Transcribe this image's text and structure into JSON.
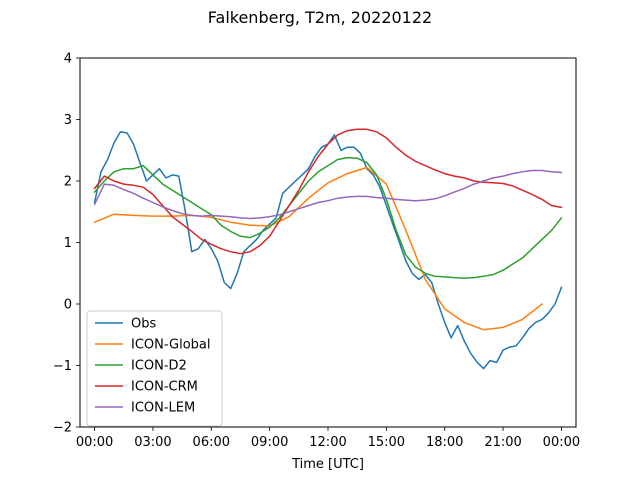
{
  "chart_data": {
    "type": "line",
    "title": "Falkenberg, T2m, 20220122",
    "xlabel": "Time [UTC]",
    "ylabel": "",
    "xlim": [
      -0.75,
      24.75
    ],
    "ylim": [
      -2,
      4
    ],
    "x_ticks": [
      0,
      3,
      6,
      9,
      12,
      15,
      18,
      21,
      24
    ],
    "x_tick_labels": [
      "00:00",
      "03:00",
      "06:00",
      "09:00",
      "12:00",
      "15:00",
      "18:00",
      "21:00",
      "00:00"
    ],
    "y_ticks": [
      -2,
      -1,
      0,
      1,
      2,
      3,
      4
    ],
    "y_tick_labels": [
      "−2",
      "−1",
      "0",
      "1",
      "2",
      "3",
      "4"
    ],
    "legend_position": "lower-left",
    "series": [
      {
        "name": "Obs",
        "color": "#1f77b4",
        "x": [
          0,
          0.33,
          0.67,
          1,
          1.33,
          1.67,
          2,
          2.33,
          2.67,
          3,
          3.33,
          3.67,
          4,
          4.33,
          4.67,
          5,
          5.33,
          5.67,
          6,
          6.33,
          6.67,
          7,
          7.33,
          7.67,
          8,
          8.33,
          8.67,
          9,
          9.33,
          9.67,
          10,
          10.33,
          10.67,
          11,
          11.33,
          11.67,
          12,
          12.33,
          12.67,
          13,
          13.33,
          13.67,
          14,
          14.33,
          14.67,
          15,
          15.33,
          15.67,
          16,
          16.33,
          16.67,
          17,
          17.33,
          17.67,
          18,
          18.33,
          18.67,
          19,
          19.33,
          19.67,
          20,
          20.33,
          20.67,
          21,
          21.33,
          21.67,
          22,
          22.33,
          22.67,
          23,
          23.33,
          23.67,
          24
        ],
        "y": [
          1.65,
          2.15,
          2.35,
          2.62,
          2.8,
          2.78,
          2.6,
          2.3,
          2.0,
          2.1,
          2.2,
          2.05,
          2.1,
          2.08,
          1.5,
          0.85,
          0.9,
          1.05,
          0.9,
          0.7,
          0.35,
          0.25,
          0.5,
          0.85,
          0.95,
          1.05,
          1.2,
          1.3,
          1.4,
          1.8,
          1.9,
          2.0,
          2.1,
          2.2,
          2.4,
          2.55,
          2.6,
          2.75,
          2.5,
          2.55,
          2.55,
          2.45,
          2.2,
          2.1,
          1.9,
          1.6,
          1.3,
          1.0,
          0.7,
          0.5,
          0.4,
          0.48,
          0.35,
          0.0,
          -0.3,
          -0.55,
          -0.35,
          -0.6,
          -0.8,
          -0.95,
          -1.05,
          -0.92,
          -0.95,
          -0.75,
          -0.7,
          -0.68,
          -0.55,
          -0.4,
          -0.3,
          -0.25,
          -0.15,
          0.0,
          0.27
        ]
      },
      {
        "name": "ICON-Global",
        "color": "#ff7f0e",
        "x": [
          0,
          1,
          2,
          3,
          4,
          5,
          6,
          7,
          8,
          9,
          10,
          11,
          12,
          13,
          14,
          15,
          16,
          17,
          18,
          19,
          20,
          21,
          22,
          23
        ],
        "y": [
          1.33,
          1.46,
          1.44,
          1.43,
          1.43,
          1.44,
          1.41,
          1.33,
          1.28,
          1.27,
          1.42,
          1.72,
          1.97,
          2.12,
          2.22,
          1.95,
          1.2,
          0.4,
          -0.08,
          -0.3,
          -0.42,
          -0.38,
          -0.25,
          0.0
        ]
      },
      {
        "name": "ICON-D2",
        "color": "#2ca02c",
        "x": [
          0,
          0.5,
          1,
          1.5,
          2,
          2.5,
          3,
          3.5,
          4,
          4.5,
          5,
          5.5,
          6,
          6.5,
          7,
          7.5,
          8,
          8.5,
          9,
          9.5,
          10,
          10.5,
          11,
          11.5,
          12,
          12.5,
          13,
          13.5,
          14,
          14.5,
          15,
          15.5,
          16,
          16.5,
          17,
          17.5,
          18,
          18.5,
          19,
          19.5,
          20,
          20.5,
          21,
          21.5,
          22,
          22.5,
          23,
          23.5,
          24
        ],
        "y": [
          1.82,
          2.0,
          2.15,
          2.2,
          2.2,
          2.25,
          2.1,
          1.95,
          1.85,
          1.75,
          1.65,
          1.55,
          1.45,
          1.28,
          1.18,
          1.1,
          1.08,
          1.15,
          1.25,
          1.4,
          1.6,
          1.8,
          2.0,
          2.15,
          2.25,
          2.35,
          2.38,
          2.37,
          2.3,
          2.1,
          1.7,
          1.2,
          0.8,
          0.6,
          0.5,
          0.45,
          0.44,
          0.43,
          0.42,
          0.43,
          0.45,
          0.48,
          0.55,
          0.65,
          0.75,
          0.9,
          1.05,
          1.2,
          1.4
        ]
      },
      {
        "name": "ICON-CRM",
        "color": "#d62728",
        "x": [
          0,
          0.5,
          1,
          1.5,
          2,
          2.5,
          3,
          3.5,
          4,
          4.5,
          5,
          5.5,
          6,
          6.5,
          7,
          7.5,
          8,
          8.5,
          9,
          9.5,
          10,
          10.5,
          11,
          11.5,
          12,
          12.5,
          13,
          13.5,
          14,
          14.5,
          15,
          15.5,
          16,
          16.5,
          17,
          17.5,
          18,
          18.5,
          19,
          19.5,
          20,
          20.5,
          21,
          21.5,
          22,
          22.5,
          23,
          23.5,
          24
        ],
        "y": [
          1.88,
          2.08,
          2.0,
          1.95,
          1.93,
          1.9,
          1.78,
          1.6,
          1.42,
          1.3,
          1.18,
          1.05,
          0.97,
          0.9,
          0.85,
          0.82,
          0.85,
          0.95,
          1.1,
          1.35,
          1.6,
          1.85,
          2.15,
          2.4,
          2.6,
          2.75,
          2.82,
          2.84,
          2.84,
          2.8,
          2.7,
          2.55,
          2.42,
          2.32,
          2.25,
          2.18,
          2.12,
          2.08,
          2.05,
          2.0,
          1.98,
          1.97,
          1.96,
          1.92,
          1.85,
          1.78,
          1.7,
          1.6,
          1.57
        ]
      },
      {
        "name": "ICON-LEM",
        "color": "#9467bd",
        "x": [
          0,
          0.5,
          1,
          1.5,
          2,
          2.5,
          3,
          3.5,
          4,
          4.5,
          5,
          5.5,
          6,
          6.5,
          7,
          7.5,
          8,
          8.5,
          9,
          9.5,
          10,
          10.5,
          11,
          11.5,
          12,
          12.5,
          13,
          13.5,
          14,
          14.5,
          15,
          15.5,
          16,
          16.5,
          17,
          17.5,
          18,
          18.5,
          19,
          19.5,
          20,
          20.5,
          21,
          21.5,
          22,
          22.5,
          23,
          23.5,
          24
        ],
        "y": [
          1.62,
          1.95,
          1.93,
          1.86,
          1.8,
          1.72,
          1.65,
          1.58,
          1.52,
          1.47,
          1.44,
          1.43,
          1.44,
          1.43,
          1.42,
          1.4,
          1.39,
          1.4,
          1.42,
          1.45,
          1.5,
          1.55,
          1.6,
          1.65,
          1.68,
          1.72,
          1.74,
          1.75,
          1.75,
          1.73,
          1.72,
          1.7,
          1.69,
          1.68,
          1.69,
          1.71,
          1.76,
          1.82,
          1.88,
          1.95,
          2.0,
          2.05,
          2.08,
          2.12,
          2.15,
          2.17,
          2.17,
          2.15,
          2.14
        ]
      }
    ]
  }
}
